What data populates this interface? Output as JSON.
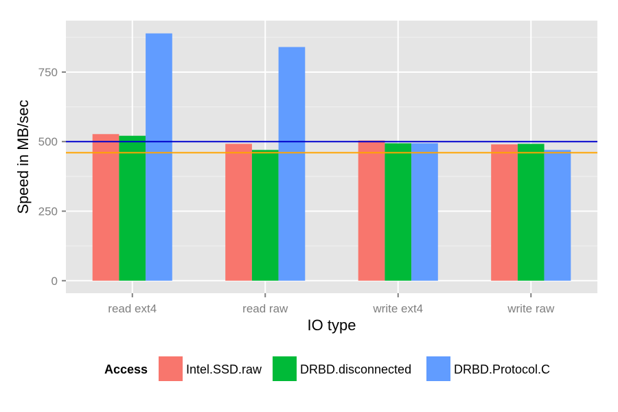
{
  "chart_data": {
    "type": "bar",
    "title": "",
    "xlabel": "IO type",
    "ylabel": "Speed in MB/sec",
    "categories": [
      "read ext4",
      "read raw",
      "write ext4",
      "write raw"
    ],
    "series": [
      {
        "name": "Intel.SSD.raw",
        "color": "#F8766D",
        "values": [
          527,
          492,
          504,
          490
        ]
      },
      {
        "name": "DRBD.disconnected",
        "color": "#00BA38",
        "values": [
          521,
          470,
          494,
          492
        ]
      },
      {
        "name": "DRBD.Protocol.C",
        "color": "#619CFF",
        "values": [
          889,
          840,
          494,
          470
        ]
      }
    ],
    "reference_lines": [
      {
        "value": 500,
        "color": "#0000CC"
      },
      {
        "value": 460,
        "color": "#FFA500"
      }
    ],
    "ylim": [
      -45,
      935
    ],
    "yticks": [
      0,
      250,
      500,
      750
    ],
    "grid": true,
    "legend": {
      "title": "Access",
      "position": "bottom"
    }
  }
}
